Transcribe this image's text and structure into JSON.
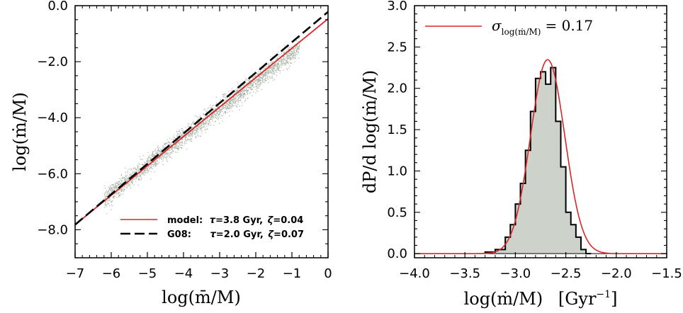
{
  "chart_data": [
    {
      "type": "scatter",
      "xlim": [
        -7,
        0
      ],
      "ylim": [
        -9,
        0
      ],
      "x_ticks": [
        -7,
        -6,
        -5,
        -4,
        -3,
        -2,
        -1,
        0
      ],
      "x_tick_labels": [
        "−7",
        "−6",
        "−5",
        "−4",
        "−3",
        "−2",
        "−1",
        "0"
      ],
      "y_ticks": [
        0,
        -2,
        -4,
        -6,
        -8
      ],
      "y_tick_labels": [
        "0.0",
        "−2.0",
        "−4.0",
        "−6.0",
        "−8.0"
      ],
      "xlabel": "log(m̄/M)",
      "ylabel": "log(ṁ/M)",
      "scatter_band": {
        "name": "galaxies",
        "color": "#aab5a8",
        "x_range": [
          -6.2,
          -0.8
        ],
        "center_slope": 1.0,
        "center_intercept": -0.68,
        "scatter_dex": 0.17
      },
      "series": [
        {
          "name": "model",
          "style": "solid",
          "color": "#d62728",
          "line": {
            "x": [
              -7,
              0
            ],
            "y": [
              -7.82,
              -0.47
            ]
          },
          "legend": {
            "prefix": "model:",
            "tau_label": "τ",
            "tau_value": "=3.8 Gyr,",
            "zeta_label": "ζ",
            "zeta_value": "=0.04"
          }
        },
        {
          "name": "G08",
          "style": "dashed",
          "color": "#000000",
          "line": {
            "x": [
              -7,
              0
            ],
            "y": [
              -7.82,
              -0.22
            ]
          },
          "legend": {
            "prefix": "G08:",
            "tau_label": "τ",
            "tau_value": "=2.0 Gyr,",
            "zeta_label": "ζ",
            "zeta_value": "=0.07"
          }
        }
      ],
      "legend_position": "bottom-right"
    },
    {
      "type": "histogram",
      "xlim": [
        -4.0,
        -1.5
      ],
      "ylim": [
        -0.05,
        3.0
      ],
      "x_ticks": [
        -4.0,
        -3.5,
        -3.0,
        -2.5,
        -2.0,
        -1.5
      ],
      "x_tick_labels": [
        "−4.0",
        "−3.5",
        "−3.0",
        "−2.5",
        "−2.0",
        "−1.5"
      ],
      "y_ticks": [
        0,
        0.5,
        1.0,
        1.5,
        2.0,
        2.5,
        3.0
      ],
      "y_tick_labels": [
        "0.0",
        "0.5",
        "1.0",
        "1.5",
        "2.0",
        "2.5",
        "3.0"
      ],
      "xlabel": "log(ṁ/M)",
      "xlabel_unit": "[Gyr",
      "xlabel_unit_exp": "−1",
      "xlabel_unit_close": "]",
      "ylabel": "dP/d log(ṁ/M)",
      "bin_edges": [
        -3.3,
        -3.2,
        -3.1,
        -3.05,
        -3.0,
        -2.95,
        -2.9,
        -2.85,
        -2.8,
        -2.75,
        -2.7,
        -2.65,
        -2.6,
        -2.55,
        -2.5,
        -2.45,
        -2.4,
        -2.35,
        -2.3,
        -2.25
      ],
      "counts": [
        0.02,
        0.05,
        0.2,
        0.35,
        0.6,
        0.85,
        1.25,
        1.72,
        2.12,
        2.2,
        2.05,
        2.25,
        1.6,
        1.05,
        0.5,
        0.35,
        0.2,
        0.05,
        0.0
      ],
      "fill_color": "#cdd3cb",
      "gaussian_fit": {
        "mu": -2.68,
        "sigma": 0.17,
        "color": "#d62728"
      },
      "legend": {
        "sigma_symbol": "σ",
        "sigma_subscript": "log(ṁ/M)",
        "equals_value": "= 0.17"
      },
      "legend_position": "top-left"
    }
  ]
}
